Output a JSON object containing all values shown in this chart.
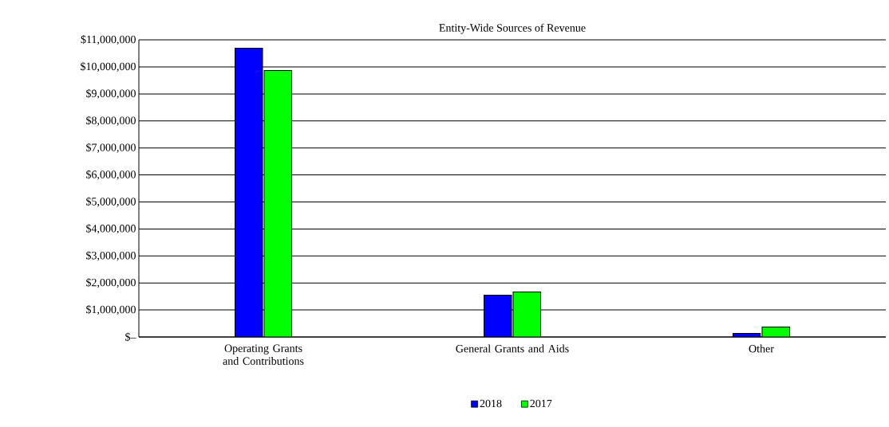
{
  "chart_data": {
    "type": "bar",
    "title": "Entity-Wide Sources of Revenue",
    "categories": [
      "Operating Grants and Contributions",
      "General Grants and Aids",
      "Other"
    ],
    "series": [
      {
        "name": "2018",
        "color": "#0000ff",
        "values": [
          10690000,
          1550000,
          130000
        ]
      },
      {
        "name": "2017",
        "color": "#00ff00",
        "values": [
          9870000,
          1670000,
          370000
        ]
      }
    ],
    "ylim": [
      0,
      11000000
    ],
    "yticks": [
      {
        "value": 0,
        "label": "$–"
      },
      {
        "value": 1000000,
        "label": "$1,000,000"
      },
      {
        "value": 2000000,
        "label": "$2,000,000"
      },
      {
        "value": 3000000,
        "label": "$3,000,000"
      },
      {
        "value": 4000000,
        "label": "$4,000,000"
      },
      {
        "value": 5000000,
        "label": "$5,000,000"
      },
      {
        "value": 6000000,
        "label": "$6,000,000"
      },
      {
        "value": 7000000,
        "label": "$7,000,000"
      },
      {
        "value": 8000000,
        "label": "$8,000,000"
      },
      {
        "value": 9000000,
        "label": "$9,000,000"
      },
      {
        "value": 10000000,
        "label": "$10,000,000"
      },
      {
        "value": 11000000,
        "label": "$11,000,000"
      }
    ],
    "grid": "y",
    "legend": "bottom"
  }
}
